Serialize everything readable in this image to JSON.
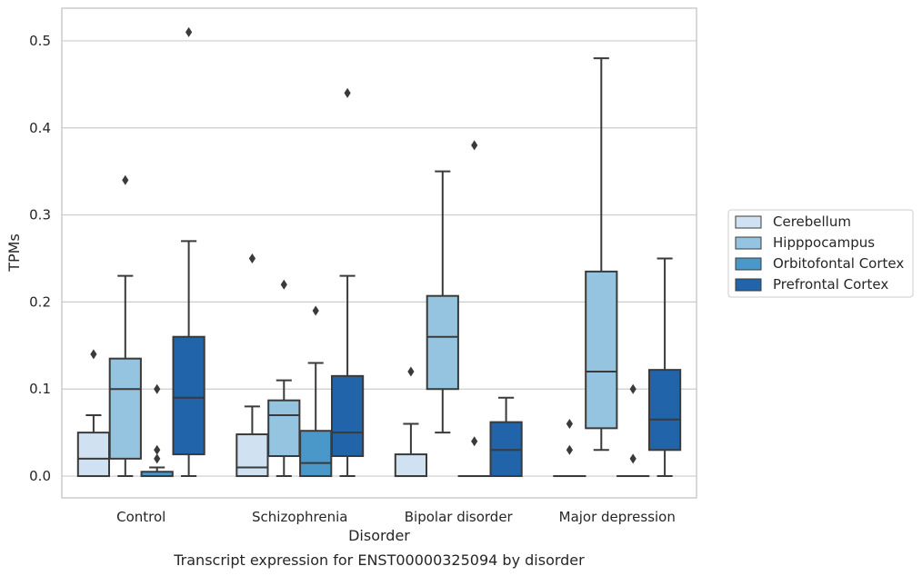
{
  "chart_data": {
    "type": "box",
    "caption": "Transcript expression for ENST00000325094 by disorder",
    "xlabel": "Disorder",
    "ylabel": "TPMs",
    "ylim": [
      -0.025,
      0.5375
    ],
    "yticks": [
      0.0,
      0.1,
      0.2,
      0.3,
      0.4,
      0.5
    ],
    "ytick_labels": [
      "0.0",
      "0.1",
      "0.2",
      "0.3",
      "0.4",
      "0.5"
    ],
    "grid": true,
    "legend_position": "right",
    "categories": [
      "Control",
      "Schizophrenia",
      "Bipolar disorder",
      "Major depression"
    ],
    "series": [
      {
        "name": "Cerebellum",
        "color": "#d0e1f2",
        "boxes": [
          {
            "whislo": 0.0,
            "q1": 0.0,
            "med": 0.02,
            "q3": 0.05,
            "whishi": 0.07,
            "fliers": [
              0.14
            ]
          },
          {
            "whislo": 0.0,
            "q1": 0.0,
            "med": 0.01,
            "q3": 0.048,
            "whishi": 0.08,
            "fliers": [
              0.25
            ]
          },
          {
            "whislo": 0.0,
            "q1": 0.0,
            "med": 0.0,
            "q3": 0.025,
            "whishi": 0.06,
            "fliers": [
              0.12
            ]
          },
          {
            "whislo": 0.0,
            "q1": 0.0,
            "med": 0.0,
            "q3": 0.0,
            "whishi": 0.0,
            "fliers": [
              0.03,
              0.06
            ]
          }
        ]
      },
      {
        "name": "Hipppocampus",
        "color": "#94c4df",
        "boxes": [
          {
            "whislo": 0.0,
            "q1": 0.02,
            "med": 0.1,
            "q3": 0.135,
            "whishi": 0.23,
            "fliers": [
              0.34
            ]
          },
          {
            "whislo": 0.0,
            "q1": 0.023,
            "med": 0.07,
            "q3": 0.087,
            "whishi": 0.11,
            "fliers": [
              0.22
            ]
          },
          {
            "whislo": 0.05,
            "q1": 0.1,
            "med": 0.16,
            "q3": 0.207,
            "whishi": 0.35,
            "fliers": []
          },
          {
            "whislo": 0.03,
            "q1": 0.055,
            "med": 0.12,
            "q3": 0.235,
            "whishi": 0.48,
            "fliers": []
          }
        ]
      },
      {
        "name": "Orbitofontal Cortex",
        "color": "#4a98c9",
        "boxes": [
          {
            "whislo": 0.0,
            "q1": 0.0,
            "med": 0.0,
            "q3": 0.005,
            "whishi": 0.01,
            "fliers": [
              0.02,
              0.03,
              0.1
            ]
          },
          {
            "whislo": 0.0,
            "q1": 0.0,
            "med": 0.015,
            "q3": 0.052,
            "whishi": 0.13,
            "fliers": [
              0.19
            ]
          },
          {
            "whislo": 0.0,
            "q1": 0.0,
            "med": 0.0,
            "q3": 0.0,
            "whishi": 0.0,
            "fliers": [
              0.04,
              0.38
            ]
          },
          {
            "whislo": 0.0,
            "q1": 0.0,
            "med": 0.0,
            "q3": 0.0,
            "whishi": 0.0,
            "fliers": [
              0.02,
              0.1
            ]
          }
        ]
      },
      {
        "name": "Prefrontal Cortex",
        "color": "#2264aa",
        "boxes": [
          {
            "whislo": 0.0,
            "q1": 0.025,
            "med": 0.09,
            "q3": 0.16,
            "whishi": 0.27,
            "fliers": [
              0.51
            ]
          },
          {
            "whislo": 0.0,
            "q1": 0.023,
            "med": 0.05,
            "q3": 0.115,
            "whishi": 0.23,
            "fliers": [
              0.44
            ]
          },
          {
            "whislo": 0.0,
            "q1": 0.0,
            "med": 0.03,
            "q3": 0.062,
            "whishi": 0.09,
            "fliers": []
          },
          {
            "whislo": 0.0,
            "q1": 0.03,
            "med": 0.065,
            "q3": 0.122,
            "whishi": 0.25,
            "fliers": []
          }
        ]
      }
    ]
  }
}
